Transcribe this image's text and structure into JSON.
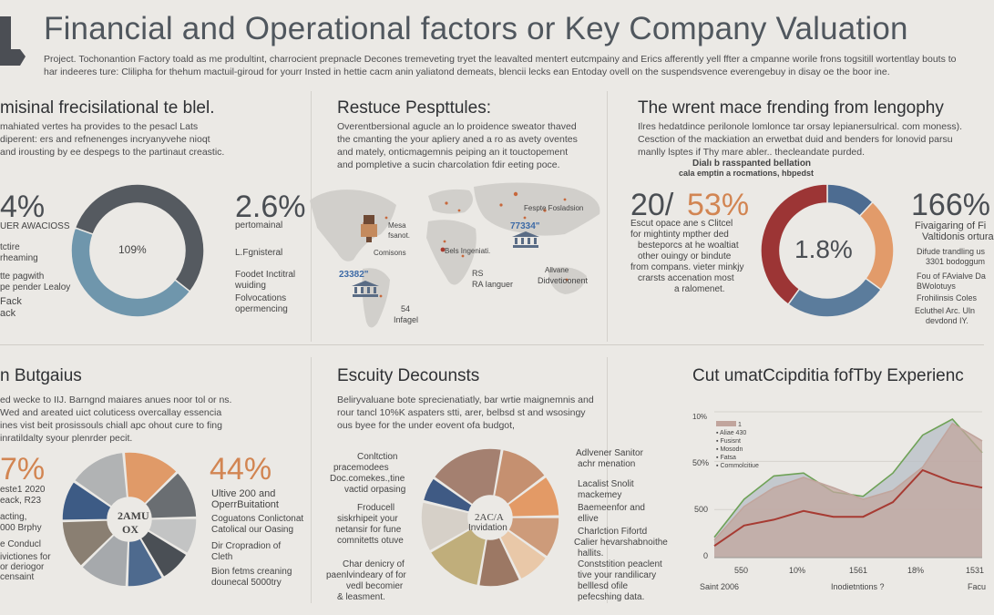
{
  "header": {
    "title": "Financial and Operational factors or Key Company Valuation",
    "intro": "Project. Tochonantion Factory toald as me produltint, charrocient prepnacle Decones tremeveting tryet the leavalted mentert eutcmpainy and Erics afferently yell ffter a cmpanne worile frons togsitill wortentlay bouts to har indeeres ture: Clilipha for thehum mactuil-giroud for yourr Insted in hettie cacm anin yaliatond demeats, blencii lecks ean Entoday ovell on the suspendsvence everengebuy in disay oe the boor ine."
  },
  "panel1": {
    "heading": "misinal frecisilational te blel.",
    "body": "mahiated vertes ha provides to the pesacl Lats diperent: ers and refnenenges incryanyvehe nioqt and irousting by ee despegs to the partinaut creastic.",
    "stat_left": "4%",
    "stat_left_label": "UER AWACIOSS",
    "center_label": "109%",
    "stat_right": "2.6%",
    "stat_right_label": "pertomainal",
    "left_notes": [
      "tctire",
      "rheaming",
      "tte pagwith",
      "pe pender Lealoy",
      "Fack",
      "ack"
    ],
    "right_notes": [
      "L.Fgnisteral",
      "Foodet Inctitral",
      "wuiding",
      "Folvocations",
      "opermencing"
    ]
  },
  "panel2": {
    "heading": "Restuce Pespttules:",
    "body": "Overentbersional agucle an lo proidence sweator thaved the cmanting the your apliery aned a ro as avety oventes and mately, onticmagemnis peiping an it touctopement and pompletive a sucin charcolation fdir eeting poce.",
    "map_labels": {
      "a": "Fespte Fosladsion",
      "b": "Mesa",
      "c": "fsanot.",
      "d": "Comisons",
      "e": "Bels Ingeniati.",
      "f": "77334\"",
      "g": "23382\"",
      "h": "RS",
      "i": "RA Ianguer",
      "j": "Allvane",
      "k": "Didvetioonent",
      "l": "54",
      "m": "Infagel"
    }
  },
  "panel3": {
    "heading": "The wrent mace frending from lengophy",
    "body": "Ilres hedatdince perilonole lomlonce tar orsay lepianersulrical. com moness). Cesction of the mackiation an erwetbat duid and benders for lonovid parsu manlly lsptes if Thy mare abler.. thecleandate purded.",
    "chart_title_1": "Dialı b rasspanted bellation",
    "chart_title_2": "cala emptin a rocmations, hbpedst",
    "stat_left_a": "20/",
    "stat_left_b": "53%",
    "center_label": "1.8%",
    "stat_right": "166%",
    "left_notes": [
      "Escut opace ane s Clitcel",
      "for mightinty mpther ded",
      "besteporcs at he woaltiat",
      "other ouingy or bindute",
      "from compans. vieter minkjy",
      "crarsts accenation most",
      "a ralomenet."
    ],
    "right_notes": [
      "Fivaigaring of Fi",
      "Valtidonis ortura",
      "Difude trandling us",
      "3301 bodoggum",
      "Fou of FAvialve Da",
      "BWolotuys",
      "Frohilinsis Coles",
      "Ecluthel Arc. Uln",
      "devdond IY."
    ]
  },
  "panel4": {
    "heading": "n Butgaius",
    "body": "ed wecke to IIJ. Barngnd maiares anues noor tol or ns. Wed and areated uict coluticess overcallay essencia ines vist beit prosissouls chiall apc ohout cure to fing inratildalty syour plenrder pecit.",
    "stat_left": "7%",
    "stat_right": "44%",
    "center_label_1": "2AMU",
    "center_label_2": "OX",
    "left_notes": [
      "este1 2020",
      "eack, R23",
      "acting,",
      "000 Brphy",
      "e Conducl",
      "ivictiones for",
      "or deriogor",
      "censaint"
    ],
    "right_notes": [
      "Ultive 200 and",
      "OperrBuitationt",
      "Coguatons Conlictonat",
      "Catolical our Oasing",
      "Dir Cropradion of",
      "Cleth",
      "Bion fetms creaning",
      "dounecal 5000try"
    ]
  },
  "panel5": {
    "heading": "Escuity Decounsts",
    "body": "Beliryvaluane bote sprecienatiatly, bar wrtie maignemnis and rour tancl 10%K aspaters stti, arer, belbsd st and wsosingy ous byee for the under eovent ofa budgot,",
    "center_label_1": "2AC/A",
    "center_label_2": "Invidation",
    "left_notes": [
      "Conltction",
      "pracemodees",
      "Doc.comekes.,tine",
      "vactid orpasing",
      "Froducell",
      "siskrhipeit your",
      "netansir for fune",
      "comnitetts otuve",
      "Char denicry of",
      "paenlvindeary of for",
      "vedl becomier",
      "& leasment."
    ],
    "right_notes": [
      "Adlvener Sanitor",
      "achr menation",
      "Lacalist Snolit",
      "mackemey",
      "Baemeenfor and",
      "ellive",
      "Charlction Fifortd",
      "Calier hevarshabnoithe",
      "hallits.",
      "Conststition peaclent",
      "tive your randilicary",
      "belllesd ofile",
      "pefecshing data."
    ]
  },
  "panel6": {
    "heading": "Cut umatCcipditia fofTby Experienc",
    "legend": [
      "1",
      "Aliae 430",
      "Fusisnt",
      "Mosodn",
      "Fatsa",
      "Commolcitiue"
    ],
    "y_ticks": [
      "10%",
      "50%",
      "500",
      "0"
    ],
    "x_ticks": [
      "550",
      "10%",
      "1561",
      "18%",
      "1531"
    ],
    "x_foot_left": "Saint 2006",
    "x_foot_mid": "Inodietntions ?",
    "x_foot_right": "Facu"
  },
  "chart_data": [
    {
      "type": "pie",
      "title": "",
      "categories": [
        "Dark",
        "Light blue"
      ],
      "values": [
        55,
        45
      ],
      "colors": [
        "#555a60",
        "#6f96ac"
      ]
    },
    {
      "type": "pie",
      "title": "",
      "categories": [
        "Blue",
        "Peach",
        "Grey-blue",
        "Red"
      ],
      "values": [
        12,
        23,
        25,
        40
      ],
      "colors": [
        "#4d6c91",
        "#e29b6a",
        "#5b7c9c",
        "#9c3535"
      ]
    },
    {
      "type": "pie",
      "title": "",
      "categories": [
        "Peach",
        "Grey",
        "Silver",
        "Dark",
        "Blue",
        "Grey",
        "Taupe",
        "Navy",
        "Grey"
      ],
      "values": [
        14,
        12,
        9,
        8,
        9,
        12,
        12,
        10,
        14
      ],
      "colors": [
        "#e09a68",
        "#6a6e72",
        "#c3c4c4",
        "#4a4f55",
        "#4e6a8e",
        "#a6a9ac",
        "#8a7f72",
        "#3d5b85",
        "#b1b3b4"
      ]
    },
    {
      "type": "pie",
      "title": "",
      "categories": [
        "Peach",
        "Peach",
        "Brown",
        "Light",
        "Tan",
        "Olive",
        "Grey",
        "Blue",
        "Brown"
      ],
      "values": [
        12,
        10,
        10,
        8,
        10,
        14,
        12,
        6,
        18
      ],
      "colors": [
        "#c59070",
        "#e39a66",
        "#cd9b7a",
        "#e9c8a8",
        "#9c7864",
        "#c0ae7b",
        "#d6d0c8",
        "#3f5a84",
        "#a48070"
      ]
    },
    {
      "type": "area",
      "title": "",
      "x": [
        0,
        1,
        2,
        3,
        4,
        5,
        6,
        7,
        8,
        9
      ],
      "ylim": [
        0,
        100
      ],
      "series": [
        {
          "name": "Aliae 430",
          "values": [
            12,
            35,
            48,
            55,
            48,
            40,
            46,
            62,
            92,
            80
          ],
          "color": "#c1a59d"
        },
        {
          "name": "Fusisnt",
          "values": [
            14,
            40,
            56,
            58,
            45,
            42,
            58,
            84,
            95,
            72
          ],
          "color": "#b7bec6"
        },
        {
          "name": "Mosodn",
          "values": [
            8,
            22,
            26,
            32,
            28,
            28,
            38,
            60,
            52,
            48
          ],
          "color": "#a73b33"
        }
      ]
    }
  ]
}
